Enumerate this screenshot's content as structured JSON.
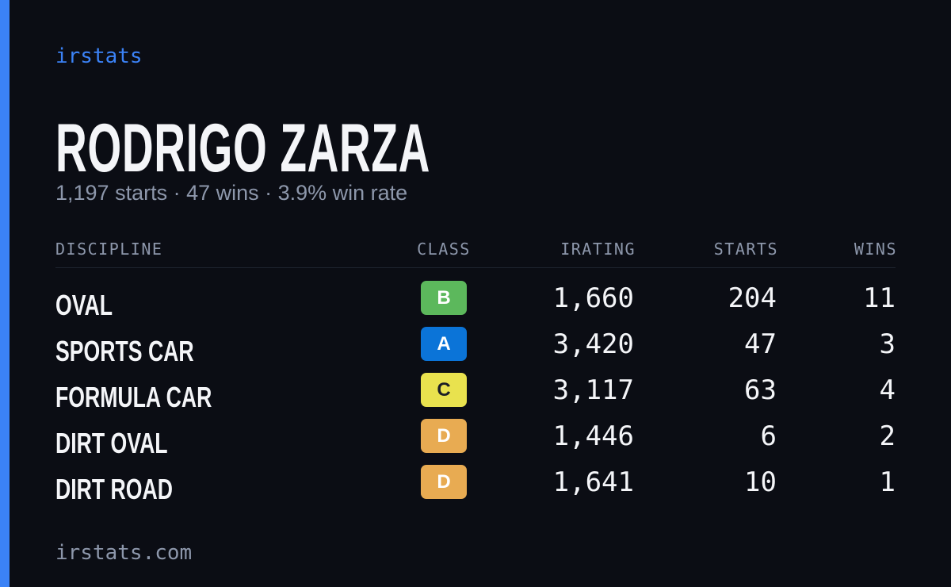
{
  "brand": "irstats",
  "driver": {
    "name": "RODRIGO ZARZA",
    "summary": "1,197 starts · 47 wins · 3.9% win rate"
  },
  "table": {
    "headers": [
      "DISCIPLINE",
      "CLASS",
      "IRATING",
      "STARTS",
      "WINS"
    ],
    "rows": [
      {
        "discipline": "OVAL",
        "class": "B",
        "class_color": "#5cb85c",
        "irating": "1,660",
        "starts": "204",
        "wins": "11"
      },
      {
        "discipline": "SPORTS CAR",
        "class": "A",
        "class_color": "#0b74d8",
        "irating": "3,420",
        "starts": "47",
        "wins": "3"
      },
      {
        "discipline": "FORMULA CAR",
        "class": "C",
        "class_color": "#e9e24e",
        "irating": "3,117",
        "starts": "63",
        "wins": "4"
      },
      {
        "discipline": "DIRT OVAL",
        "class": "D",
        "class_color": "#e8ab52",
        "irating": "1,446",
        "starts": "6",
        "wins": "2"
      },
      {
        "discipline": "DIRT ROAD",
        "class": "D",
        "class_color": "#e8ab52",
        "irating": "1,641",
        "starts": "10",
        "wins": "1"
      }
    ]
  },
  "footer": "irstats.com"
}
